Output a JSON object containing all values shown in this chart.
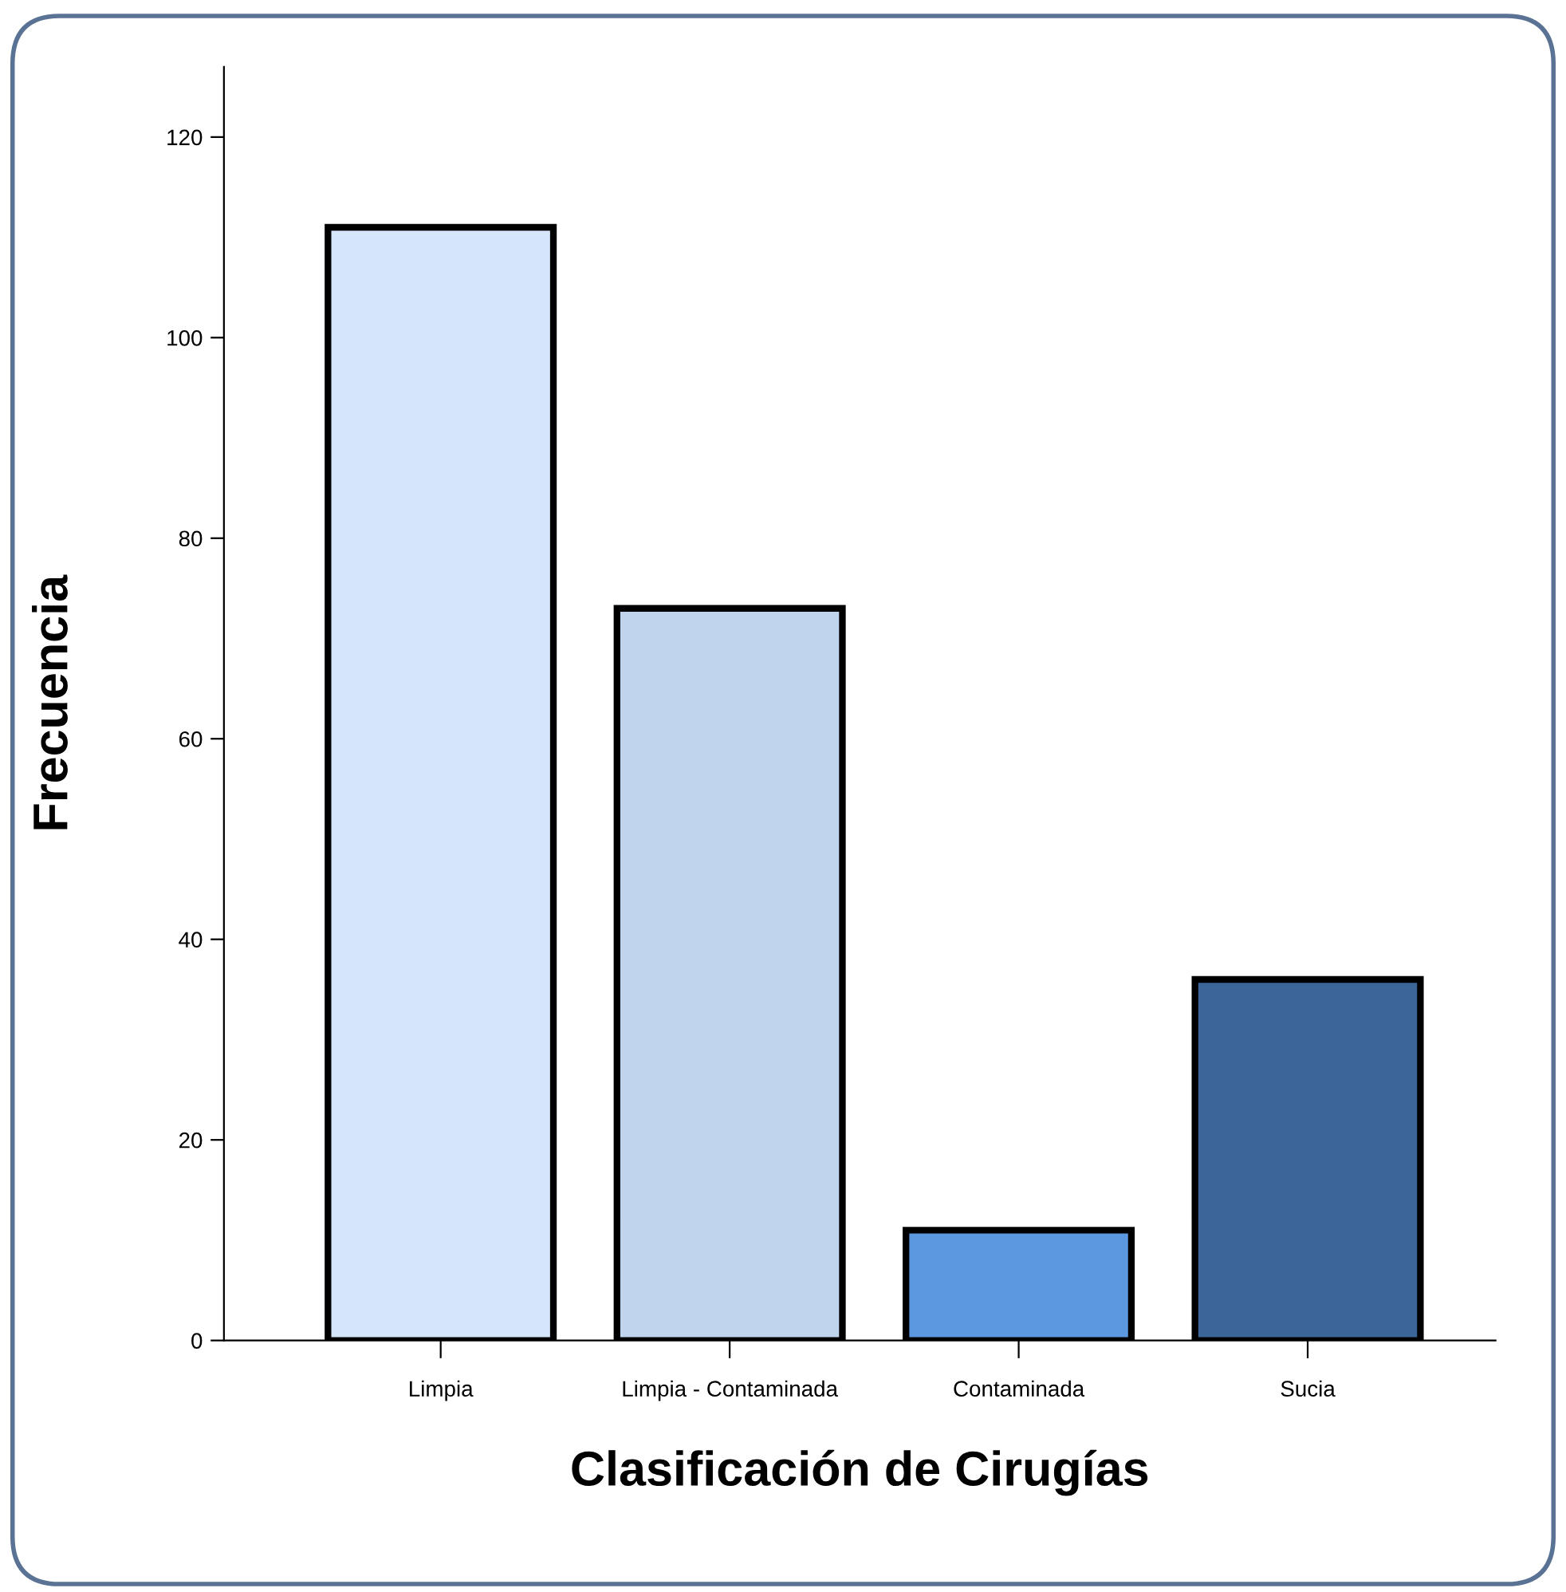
{
  "chart_data": {
    "type": "bar",
    "xlabel": "Clasificación de Cirugías",
    "ylabel": "Frecuencia",
    "categories": [
      "Limpia",
      "Limpia - Contaminada",
      "Contaminada",
      "Sucia"
    ],
    "values": [
      111,
      73,
      11,
      36
    ],
    "colors": [
      "#d6e6fa",
      "#c0d4ee",
      "#5b98e0",
      "#3c6699"
    ],
    "ylim": [
      0,
      127
    ],
    "yticks": [
      0,
      20,
      40,
      60,
      80,
      100,
      120
    ]
  }
}
